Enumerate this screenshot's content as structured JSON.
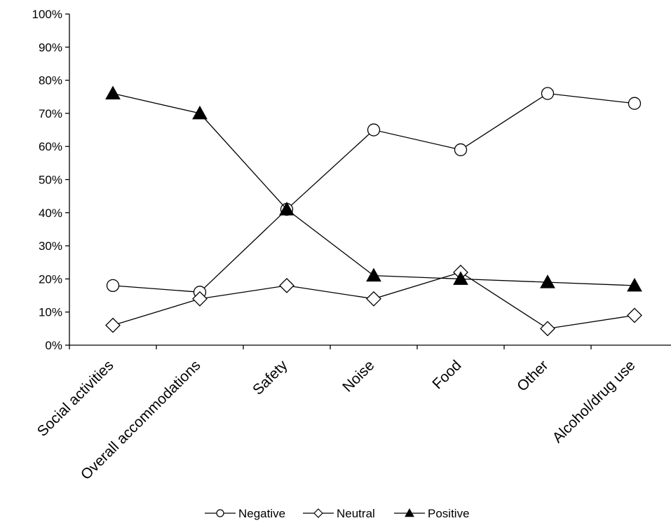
{
  "chart_data": {
    "type": "line",
    "title": "",
    "xlabel": "",
    "ylabel": "",
    "categories": [
      "Social activities",
      "Overall accommodations",
      "Safety",
      "Noise",
      "Food",
      "Other",
      "Alcohol/drug use"
    ],
    "ylim": [
      0,
      100
    ],
    "yticks": [
      "0%",
      "10%",
      "20%",
      "30%",
      "40%",
      "50%",
      "60%",
      "70%",
      "80%",
      "90%",
      "100%"
    ],
    "grid": false,
    "legend_position": "bottom",
    "series": [
      {
        "name": "Negative",
        "marker": "circle-open",
        "color": "#000000",
        "values": [
          18,
          16,
          41,
          65,
          59,
          76,
          73
        ]
      },
      {
        "name": "Neutral",
        "marker": "diamond-open",
        "color": "#000000",
        "values": [
          6,
          14,
          18,
          14,
          22,
          5,
          9
        ]
      },
      {
        "name": "Positive",
        "marker": "triangle-filled",
        "color": "#000000",
        "values": [
          76,
          70,
          41,
          21,
          20,
          19,
          18
        ]
      }
    ]
  }
}
